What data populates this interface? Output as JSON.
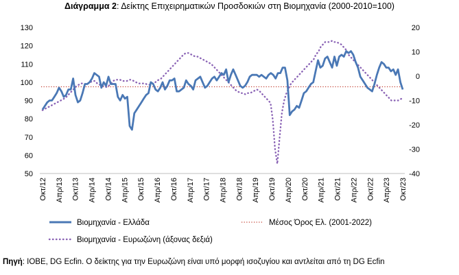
{
  "title": {
    "prefix": "Διάγραμμα 2",
    "text": ": Δείκτης Επιχειρηματικών Προσδοκιών στη Βιομηχανία (2000-2010=100)"
  },
  "source": {
    "label": "Πηγή",
    "text": ": IOBE, DG Ecfin. Ο δείκτης για την Ευρωζώνη είναι υπό μορφή ισοζυγίου και αντλείται από τη DG Ecfin"
  },
  "chart_data": {
    "type": "line",
    "x_tick_labels": [
      "Οκτ/12",
      "Απρ/13",
      "Οκτ/13",
      "Απρ/14",
      "Οκτ/14",
      "Απρ/15",
      "Οκτ/15",
      "Απρ/16",
      "Οκτ/16",
      "Απρ/17",
      "Οκτ/17",
      "Απρ/18",
      "Οκτ/18",
      "Απρ/19",
      "Οκτ/19",
      "Απρ/20",
      "Οκτ/20",
      "Απρ/21",
      "Οκτ/21",
      "Απρ/22",
      "Οκτ/22",
      "Απρ/23",
      "Οκτ/23"
    ],
    "y_left": {
      "min": 50,
      "max": 130,
      "ticks": [
        50,
        60,
        70,
        80,
        90,
        100,
        110,
        120,
        130
      ]
    },
    "y_right": {
      "min": -40,
      "max": 20,
      "ticks": [
        -40,
        -30,
        -20,
        -10,
        0,
        10,
        20
      ]
    },
    "grid": false,
    "legend_position": "bottom",
    "colors": {
      "greece": "#4a78b5",
      "eurozone": "#8a63b5",
      "mean": "#c0392b"
    },
    "series": [
      {
        "name": "Βιομηχανία  - Ελλάδα",
        "axis": "left",
        "style": "solid",
        "values": [
          85,
          87,
          89,
          90,
          90,
          92,
          94,
          97,
          95,
          92,
          93,
          96,
          96,
          102,
          93,
          89,
          90,
          94,
          99,
          99,
          100,
          102,
          105,
          104,
          103,
          97,
          100,
          98,
          103,
          99,
          99,
          99,
          92,
          90,
          93,
          91,
          92,
          76,
          74,
          83,
          85,
          87,
          89,
          91,
          93,
          94,
          100,
          99,
          96,
          95,
          97,
          100,
          96,
          98,
          101,
          101,
          102,
          95,
          95,
          96,
          97,
          101,
          99,
          98,
          96,
          101,
          102,
          103,
          100,
          97,
          98,
          100,
          102,
          103,
          101,
          103,
          105,
          104,
          107,
          100,
          104,
          107,
          104,
          101,
          98,
          97,
          98,
          100,
          103,
          104,
          104,
          104,
          103,
          104,
          103,
          102,
          104,
          105,
          104,
          102,
          105,
          105,
          108,
          108,
          101,
          82,
          84,
          85,
          87,
          86,
          90,
          94,
          95,
          97,
          99,
          100,
          106,
          112,
          108,
          109,
          113,
          114,
          111,
          108,
          114,
          109,
          114,
          115,
          114,
          117,
          116,
          117,
          115,
          111,
          108,
          103,
          101,
          99,
          97,
          96,
          95,
          99,
          104,
          108,
          111,
          110,
          108,
          108,
          106,
          107,
          104,
          107,
          100,
          96
        ]
      },
      {
        "name": "Μέσος Όρος Ελ. (2001-2022)",
        "axis": "left",
        "style": "dotted",
        "values": [
          97.5,
          97.5
        ]
      },
      {
        "name": "Βιομηχανία - Ευρωζώνη (άξονας δεξιά)",
        "axis": "right",
        "style": "dotted",
        "values": [
          -14,
          -13.5,
          -13,
          -12.5,
          -12,
          -11.5,
          -11,
          -10.5,
          -10,
          -9.5,
          -9,
          -8,
          -7,
          -6,
          -5,
          -4,
          -3.5,
          -3,
          -3,
          -3.5,
          -3,
          -2.5,
          -2,
          -2,
          -3,
          -3.5,
          -4,
          -4,
          -4.5,
          -4,
          -3,
          -2,
          -1.5,
          -1.5,
          -1.5,
          -2,
          -2,
          -2,
          -1.5,
          -1.5,
          -2,
          -2.5,
          -3,
          -3,
          -3,
          -3,
          -3.5,
          -3.5,
          -3,
          -3,
          -2,
          -1.5,
          -1,
          0,
          1,
          2,
          3,
          4,
          5,
          6,
          7,
          8,
          9,
          9.5,
          9.5,
          9,
          8.5,
          8,
          8,
          7.5,
          7,
          6.5,
          6,
          5.5,
          5,
          4,
          3,
          2,
          1,
          0,
          -1,
          -2,
          -3,
          -4,
          -5,
          -6,
          -6.5,
          -7,
          -7,
          -7.5,
          -7,
          -7,
          -6.5,
          -6,
          -5.5,
          -6,
          -7,
          -8,
          -9,
          -10,
          -11,
          -18,
          -30,
          -36,
          -25,
          -15,
          -10,
          -7,
          -5,
          -3,
          -2,
          -1,
          0,
          1,
          2,
          3,
          4,
          5,
          6,
          7,
          9,
          10,
          12,
          13,
          14,
          14,
          14,
          14.5,
          14,
          14,
          13.5,
          13,
          12,
          11,
          9,
          8,
          7,
          6,
          5,
          4,
          3,
          2,
          1,
          0,
          -1,
          -2,
          -3,
          -4,
          -5,
          -6,
          -7,
          -8,
          -9,
          -10,
          -10,
          -10,
          -10,
          -9.5,
          -9
        ]
      }
    ]
  },
  "legend": [
    {
      "label": "Βιομηχανία  - Ελλάδα",
      "style": "solid"
    },
    {
      "label": "Μέσος Όρος Ελ. (2001-2022)",
      "style": "mean"
    },
    {
      "label": "Βιομηχανία - Ευρωζώνη (άξονας δεξιά)",
      "style": "dotted"
    }
  ]
}
